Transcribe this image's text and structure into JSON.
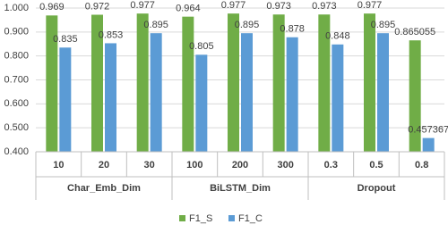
{
  "chart_data": {
    "type": "bar",
    "categories": [
      "10",
      "20",
      "30",
      "100",
      "200",
      "300",
      "0.3",
      "0.5",
      "0.8"
    ],
    "category_groups": [
      "Char_Emb_Dim",
      "Char_Emb_Dim",
      "Char_Emb_Dim",
      "BiLSTM_Dim",
      "BiLSTM_Dim",
      "BiLSTM_Dim",
      "Dropout",
      "Dropout",
      "Dropout"
    ],
    "series": [
      {
        "name": "F1_S",
        "color": "#70ad47",
        "values": [
          0.969,
          0.972,
          0.977,
          0.964,
          0.977,
          0.973,
          0.973,
          0.977,
          0.865055
        ]
      },
      {
        "name": "F1_C",
        "color": "#5b9bd5",
        "values": [
          0.835,
          0.853,
          0.895,
          0.805,
          0.895,
          0.878,
          0.848,
          0.895,
          0.457367
        ]
      }
    ],
    "ylim": [
      0.4,
      1.0
    ],
    "yticks": [
      {
        "value": 0.4,
        "label": "0.400"
      },
      {
        "value": 0.5,
        "label": "0.500"
      },
      {
        "value": 0.6,
        "label": "0.600"
      },
      {
        "value": 0.7,
        "label": "0.700"
      },
      {
        "value": 0.8,
        "label": "0.800"
      },
      {
        "value": 0.9,
        "label": "0.900"
      },
      {
        "value": 1.0,
        "label": "1.000"
      }
    ],
    "grid": true
  }
}
